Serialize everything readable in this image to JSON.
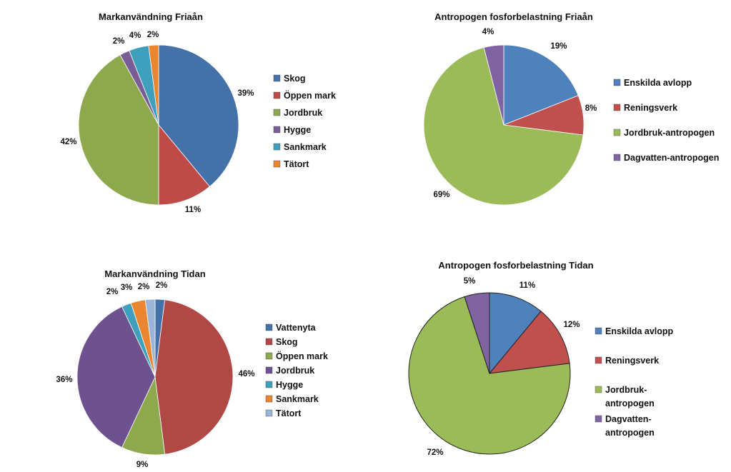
{
  "chart_data": [
    {
      "type": "pie",
      "title": "Markanvändning Friaån",
      "slices": [
        {
          "name": "Skog",
          "value": 39,
          "label": "39%",
          "color": "#4472A8"
        },
        {
          "name": "Öppen mark",
          "value": 11,
          "label": "11%",
          "color": "#BE4B48"
        },
        {
          "name": "Jordbruk",
          "value": 42,
          "label": "42%",
          "color": "#8EA84E"
        },
        {
          "name": "Hygge",
          "value": 2,
          "label": "2%",
          "color": "#7A5C97"
        },
        {
          "name": "Sankmark",
          "value": 4,
          "label": "4%",
          "color": "#3FA0BE"
        },
        {
          "name": "Tätort",
          "value": 2,
          "label": "2%",
          "color": "#E9862F"
        }
      ],
      "legend_position": "right"
    },
    {
      "type": "pie",
      "title": "Antropogen fosforbelastning Friaån",
      "slices": [
        {
          "name": "Enskilda avlopp",
          "value": 19,
          "label": "19%",
          "color": "#4F81BD"
        },
        {
          "name": "Reningsverk",
          "value": 8,
          "label": "8%",
          "color": "#C0504D"
        },
        {
          "name": "Jordbruk-antropogen",
          "value": 69,
          "label": "69%",
          "color": "#9BBB59"
        },
        {
          "name": "Dagvatten-antropogen",
          "value": 4,
          "label": "4%",
          "color": "#8064A2"
        }
      ],
      "legend_position": "right"
    },
    {
      "type": "pie",
      "title": "Markanvändning Tidan",
      "slices": [
        {
          "name": "Vattenyta",
          "value": 2,
          "label": "2%",
          "color": "#4472A8"
        },
        {
          "name": "Skog",
          "value": 46,
          "label": "46%",
          "color": "#B04845"
        },
        {
          "name": "Öppen mark",
          "value": 9,
          "label": "9%",
          "color": "#8EA84E"
        },
        {
          "name": "Jordbruk",
          "value": 36,
          "label": "36%",
          "color": "#6E5290"
        },
        {
          "name": "Hygge",
          "value": 2,
          "label": "2%",
          "color": "#3FA0BE"
        },
        {
          "name": "Sankmark",
          "value": 3,
          "label": "3%",
          "color": "#E9862F"
        },
        {
          "name": "Tätort",
          "value": 2,
          "label": "2%",
          "color": "#9CB4D8"
        }
      ],
      "legend_position": "right"
    },
    {
      "type": "pie",
      "title": "Antropogen fosforbelastning Tidan",
      "slices": [
        {
          "name": "Enskilda avlopp",
          "value": 11,
          "label": "11%",
          "color": "#4F81BD"
        },
        {
          "name": "Reningsverk",
          "value": 12,
          "label": "12%",
          "color": "#C0504D"
        },
        {
          "name": "Jordbruk-antropogen",
          "value": 72,
          "label": "72%",
          "color": "#9BBB59"
        },
        {
          "name": "Dagvatten-antropogen",
          "value": 5,
          "label": "5%",
          "color": "#8064A2"
        }
      ],
      "legend_position": "right"
    }
  ]
}
